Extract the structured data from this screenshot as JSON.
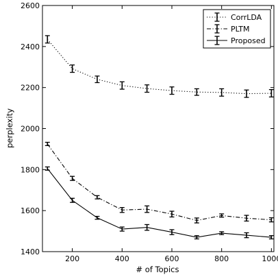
{
  "chart_data": {
    "type": "line",
    "xlabel": "# of Topics",
    "ylabel": "perplexity",
    "xlim": [
      80,
      1010
    ],
    "ylim": [
      1400,
      2600
    ],
    "x": [
      100,
      200,
      300,
      400,
      500,
      600,
      700,
      800,
      900,
      1000
    ],
    "xticks": [
      200,
      400,
      600,
      800,
      1000
    ],
    "yticks": [
      1400,
      1600,
      1800,
      2000,
      2200,
      2400,
      2600
    ],
    "grid": false,
    "legend_position": "top-right",
    "series": [
      {
        "name": "CorrLDA",
        "linestyle": "dotted",
        "values": [
          2435,
          2292,
          2240,
          2210,
          2195,
          2185,
          2178,
          2176,
          2170,
          2172
        ],
        "errors": [
          18,
          18,
          16,
          18,
          18,
          18,
          16,
          18,
          18,
          18
        ]
      },
      {
        "name": "PLTM",
        "linestyle": "dashdot",
        "values": [
          1925,
          1757,
          1665,
          1603,
          1607,
          1583,
          1552,
          1576,
          1563,
          1555
        ],
        "errors": [
          8,
          10,
          8,
          12,
          16,
          14,
          12,
          8,
          14,
          10
        ]
      },
      {
        "name": "Proposed",
        "linestyle": "solid",
        "values": [
          1805,
          1650,
          1565,
          1510,
          1518,
          1495,
          1470,
          1490,
          1480,
          1470
        ],
        "errors": [
          8,
          10,
          7,
          10,
          14,
          12,
          8,
          7,
          12,
          8
        ]
      }
    ],
    "colors": {
      "line": "#000000",
      "background": "#ffffff"
    }
  }
}
